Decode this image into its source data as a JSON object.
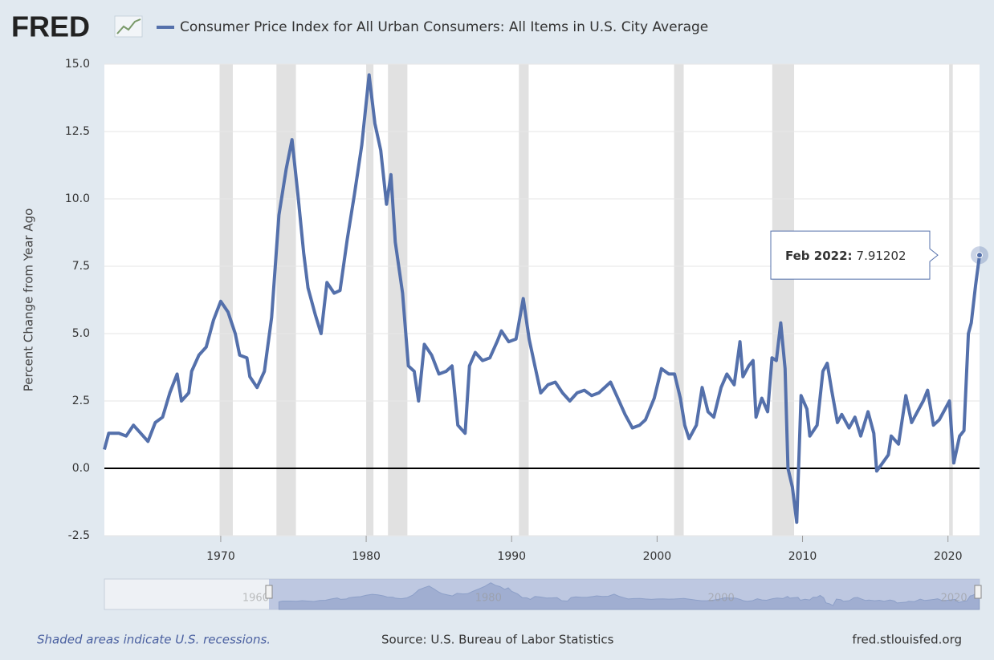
{
  "chart_data": {
    "type": "line",
    "logo": "FRED",
    "title": "Consumer Price Index for All Urban Consumers: All Items in U.S. City Average",
    "ylabel": "Percent Change from Year Ago",
    "x": [
      1962.0,
      1962.3,
      1962.7,
      1963.0,
      1963.5,
      1964.0,
      1964.5,
      1965.0,
      1965.5,
      1966.0,
      1966.5,
      1967.0,
      1967.3,
      1967.8,
      1968.0,
      1968.5,
      1969.0,
      1969.5,
      1970.0,
      1970.5,
      1971.0,
      1971.3,
      1971.8,
      1972.0,
      1972.5,
      1973.0,
      1973.5,
      1974.0,
      1974.5,
      1974.9,
      1975.3,
      1975.7,
      1976.0,
      1976.5,
      1976.9,
      1977.3,
      1977.8,
      1978.2,
      1978.7,
      1979.2,
      1979.7,
      1980.2,
      1980.6,
      1981.0,
      1981.4,
      1981.7,
      1982.0,
      1982.5,
      1982.9,
      1983.3,
      1983.6,
      1984.0,
      1984.5,
      1985.0,
      1985.5,
      1985.9,
      1986.3,
      1986.8,
      1987.1,
      1987.5,
      1988.0,
      1988.5,
      1989.0,
      1989.3,
      1989.8,
      1990.3,
      1990.8,
      1991.2,
      1991.6,
      1992.0,
      1992.5,
      1993.0,
      1993.5,
      1994.0,
      1994.5,
      1995.0,
      1995.5,
      1996.0,
      1996.8,
      1997.3,
      1997.8,
      1998.3,
      1998.8,
      1999.2,
      1999.8,
      2000.3,
      2000.8,
      2001.2,
      2001.6,
      2001.9,
      2002.2,
      2002.7,
      2003.1,
      2003.5,
      2003.9,
      2004.4,
      2004.8,
      2005.3,
      2005.7,
      2005.9,
      2006.3,
      2006.6,
      2006.8,
      2007.2,
      2007.6,
      2007.9,
      2008.2,
      2008.5,
      2008.8,
      2009.0,
      2009.3,
      2009.6,
      2009.9,
      2010.3,
      2010.5,
      2011.0,
      2011.4,
      2011.7,
      2012.0,
      2012.4,
      2012.7,
      2013.2,
      2013.6,
      2014.0,
      2014.5,
      2014.9,
      2015.1,
      2015.5,
      2015.9,
      2016.1,
      2016.6,
      2017.1,
      2017.5,
      2017.9,
      2018.3,
      2018.6,
      2019.0,
      2019.4,
      2019.9,
      2020.1,
      2020.4,
      2020.8,
      2021.1,
      2021.4,
      2021.6,
      2021.9,
      2022.17
    ],
    "series": [
      {
        "name": "Consumer Price Index for All Urban Consumers: All Items in U.S. City Average",
        "color": "#5470ab",
        "values": [
          0.7,
          1.3,
          1.3,
          1.3,
          1.2,
          1.6,
          1.3,
          1.0,
          1.7,
          1.9,
          2.8,
          3.5,
          2.5,
          2.8,
          3.6,
          4.2,
          4.5,
          5.5,
          6.2,
          5.8,
          5.0,
          4.2,
          4.1,
          3.4,
          3.0,
          3.6,
          5.6,
          9.4,
          11.1,
          12.2,
          10.2,
          8.0,
          6.7,
          5.7,
          5.0,
          6.9,
          6.5,
          6.6,
          8.5,
          10.2,
          12.0,
          14.6,
          12.8,
          11.8,
          9.8,
          10.9,
          8.4,
          6.5,
          3.8,
          3.6,
          2.5,
          4.6,
          4.2,
          3.5,
          3.6,
          3.8,
          1.6,
          1.3,
          3.8,
          4.3,
          4.0,
          4.1,
          4.7,
          5.1,
          4.7,
          4.8,
          6.3,
          4.8,
          3.8,
          2.8,
          3.1,
          3.2,
          2.8,
          2.5,
          2.8,
          2.9,
          2.7,
          2.8,
          3.2,
          2.6,
          2.0,
          1.5,
          1.6,
          1.8,
          2.6,
          3.7,
          3.5,
          3.5,
          2.6,
          1.6,
          1.1,
          1.6,
          3.0,
          2.1,
          1.9,
          3.0,
          3.5,
          3.1,
          4.7,
          3.4,
          3.8,
          4.0,
          1.9,
          2.6,
          2.1,
          4.1,
          4.0,
          5.4,
          3.7,
          0.0,
          -0.7,
          -2.0,
          2.7,
          2.2,
          1.2,
          1.6,
          3.6,
          3.9,
          2.9,
          1.7,
          2.0,
          1.5,
          1.9,
          1.2,
          2.1,
          1.3,
          -0.1,
          0.2,
          0.5,
          1.2,
          0.9,
          2.7,
          1.7,
          2.1,
          2.5,
          2.9,
          1.6,
          1.8,
          2.3,
          2.5,
          0.2,
          1.2,
          1.4,
          5.0,
          5.4,
          6.8,
          7.91202
        ]
      }
    ],
    "recessions": [
      [
        1969.92,
        1970.83
      ],
      [
        1973.83,
        1975.17
      ],
      [
        1980.0,
        1980.5
      ],
      [
        1981.5,
        1982.83
      ],
      [
        1990.5,
        1991.17
      ],
      [
        2001.17,
        2001.83
      ],
      [
        2007.92,
        2009.42
      ],
      [
        2020.08,
        2020.33
      ]
    ],
    "xlim": [
      1962.0,
      2022.17
    ],
    "xticks": [
      1970,
      1980,
      1990,
      2000,
      2010,
      2020
    ],
    "ylim": [
      -2.5,
      15
    ],
    "yticks": [
      {
        "value": -2.5,
        "label": "-2.5"
      },
      {
        "value": 0,
        "label": "0.0"
      },
      {
        "value": 2.5,
        "label": "2.5"
      },
      {
        "value": 5,
        "label": "5.0"
      },
      {
        "value": 7.5,
        "label": "7.5"
      },
      {
        "value": 10,
        "label": "10.0"
      },
      {
        "value": 12.5,
        "label": "12.5"
      },
      {
        "value": 15,
        "label": "15.0"
      }
    ],
    "grid": true,
    "tooltip": {
      "label": "Feb 2022:",
      "value": 7.91202
    },
    "navigator_xlim": [
      1947,
      2022.2
    ],
    "navigator_ticks": [
      1960,
      1980,
      2000,
      2020
    ],
    "footer_note": "Shaded areas indicate U.S. recessions.",
    "source": "Source: U.S. Bureau of Labor Statistics",
    "site": "fred.stlouisfed.org"
  }
}
